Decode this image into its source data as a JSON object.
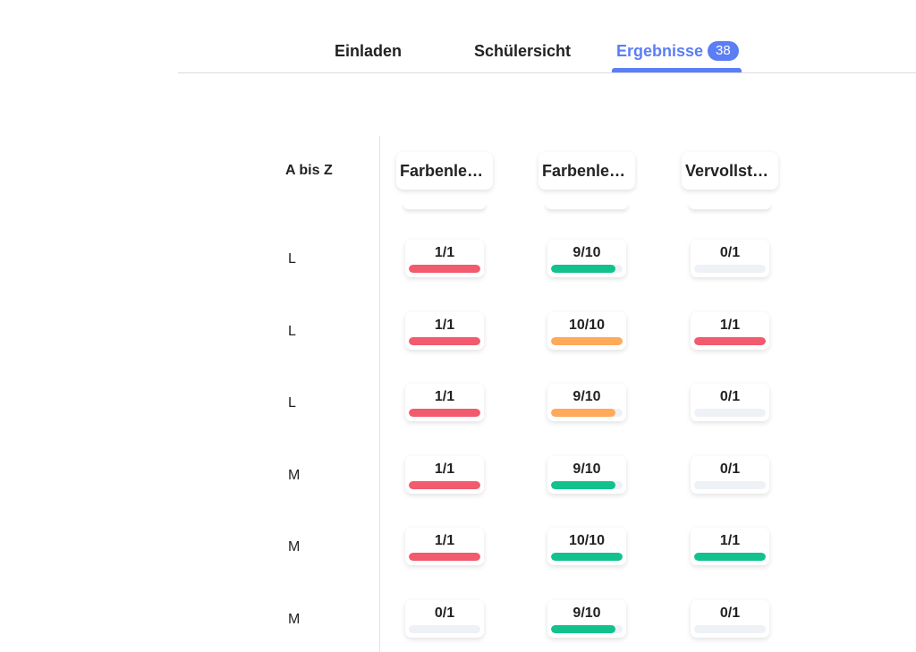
{
  "tabs": [
    {
      "label": "Einladen"
    },
    {
      "label": "Schülersicht"
    },
    {
      "label": "Ergebnisse",
      "badge": "38"
    }
  ],
  "accent_color": "#5b7ef5",
  "sort_label": "A bis Z",
  "columns": [
    {
      "label": "Farbenleh…"
    },
    {
      "label": "Farbenleh…"
    },
    {
      "label": "Vervollstä…"
    }
  ],
  "status_colors": {
    "low": "#f25a6e",
    "medium": "#ffa95a",
    "high": "#12c28e",
    "empty": "#eef1f6"
  },
  "rows": [
    {
      "label": "L",
      "cells": [
        {
          "score": "1/1",
          "progress": 1.0,
          "color": "red"
        },
        {
          "score": "9/10",
          "progress": 0.9,
          "color": "green"
        },
        {
          "score": "0/1",
          "progress": 0.0,
          "color": "none"
        }
      ]
    },
    {
      "label": "L",
      "cells": [
        {
          "score": "1/1",
          "progress": 1.0,
          "color": "red"
        },
        {
          "score": "10/10",
          "progress": 1.0,
          "color": "orange"
        },
        {
          "score": "1/1",
          "progress": 1.0,
          "color": "red"
        }
      ]
    },
    {
      "label": "L",
      "cells": [
        {
          "score": "1/1",
          "progress": 1.0,
          "color": "red"
        },
        {
          "score": "9/10",
          "progress": 0.9,
          "color": "orange"
        },
        {
          "score": "0/1",
          "progress": 0.0,
          "color": "none"
        }
      ]
    },
    {
      "label": "M",
      "cells": [
        {
          "score": "1/1",
          "progress": 1.0,
          "color": "red"
        },
        {
          "score": "9/10",
          "progress": 0.9,
          "color": "green"
        },
        {
          "score": "0/1",
          "progress": 0.0,
          "color": "none"
        }
      ]
    },
    {
      "label": "M",
      "cells": [
        {
          "score": "1/1",
          "progress": 1.0,
          "color": "red"
        },
        {
          "score": "10/10",
          "progress": 1.0,
          "color": "green"
        },
        {
          "score": "1/1",
          "progress": 1.0,
          "color": "green"
        }
      ]
    },
    {
      "label": "M",
      "cells": [
        {
          "score": "0/1",
          "progress": 0.0,
          "color": "none"
        },
        {
          "score": "9/10",
          "progress": 0.9,
          "color": "green"
        },
        {
          "score": "0/1",
          "progress": 0.0,
          "color": "none"
        }
      ]
    }
  ]
}
